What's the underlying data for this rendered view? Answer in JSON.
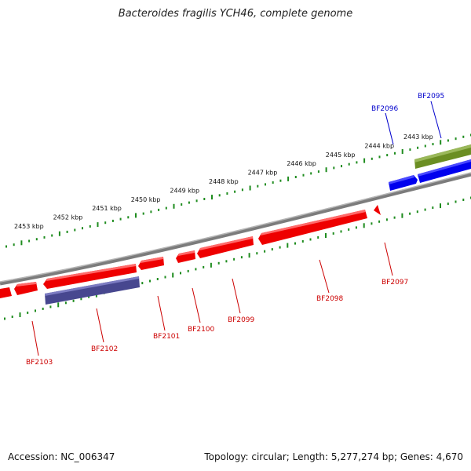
{
  "title": "Bacteroides fragilis YCH46, complete genome",
  "footer": {
    "accession": "Accession: NC_006347",
    "summary": "Topology: circular; Length: 5,277,274 bp; Genes: 4,670"
  },
  "colors": {
    "backbone": "#8a8a8a",
    "tick": "#1e8c1e",
    "forward_gene": "#0000ee",
    "reverse_gene": "#ee0000",
    "purple_gene": "#4b4b9a",
    "olive_gene": "#6b8e23"
  },
  "scale_labels": [
    {
      "kbp": 2453,
      "text": "2453 kbp"
    },
    {
      "kbp": 2452,
      "text": "2452 kbp"
    },
    {
      "kbp": 2451,
      "text": "2451 kbp"
    },
    {
      "kbp": 2450,
      "text": "2450 kbp"
    },
    {
      "kbp": 2449,
      "text": "2449 kbp"
    },
    {
      "kbp": 2448,
      "text": "2448 kbp"
    },
    {
      "kbp": 2447,
      "text": "2447 kbp"
    },
    {
      "kbp": 2446,
      "text": "2446 kbp"
    },
    {
      "kbp": 2445,
      "text": "2445 kbp"
    },
    {
      "kbp": 2444,
      "text": "2444 kbp"
    },
    {
      "kbp": 2443,
      "text": "2443 kbp"
    }
  ],
  "gene_labels": [
    {
      "name": "BF2095",
      "color": "#0000cc"
    },
    {
      "name": "BF2096",
      "color": "#0000cc"
    },
    {
      "name": "BF2097",
      "color": "#cc0000"
    },
    {
      "name": "BF2098",
      "color": "#cc0000"
    },
    {
      "name": "BF2099",
      "color": "#cc0000"
    },
    {
      "name": "BF2100",
      "color": "#cc0000"
    },
    {
      "name": "BF2101",
      "color": "#cc0000"
    },
    {
      "name": "BF2102",
      "color": "#cc0000"
    },
    {
      "name": "BF2103",
      "color": "#cc0000"
    }
  ]
}
